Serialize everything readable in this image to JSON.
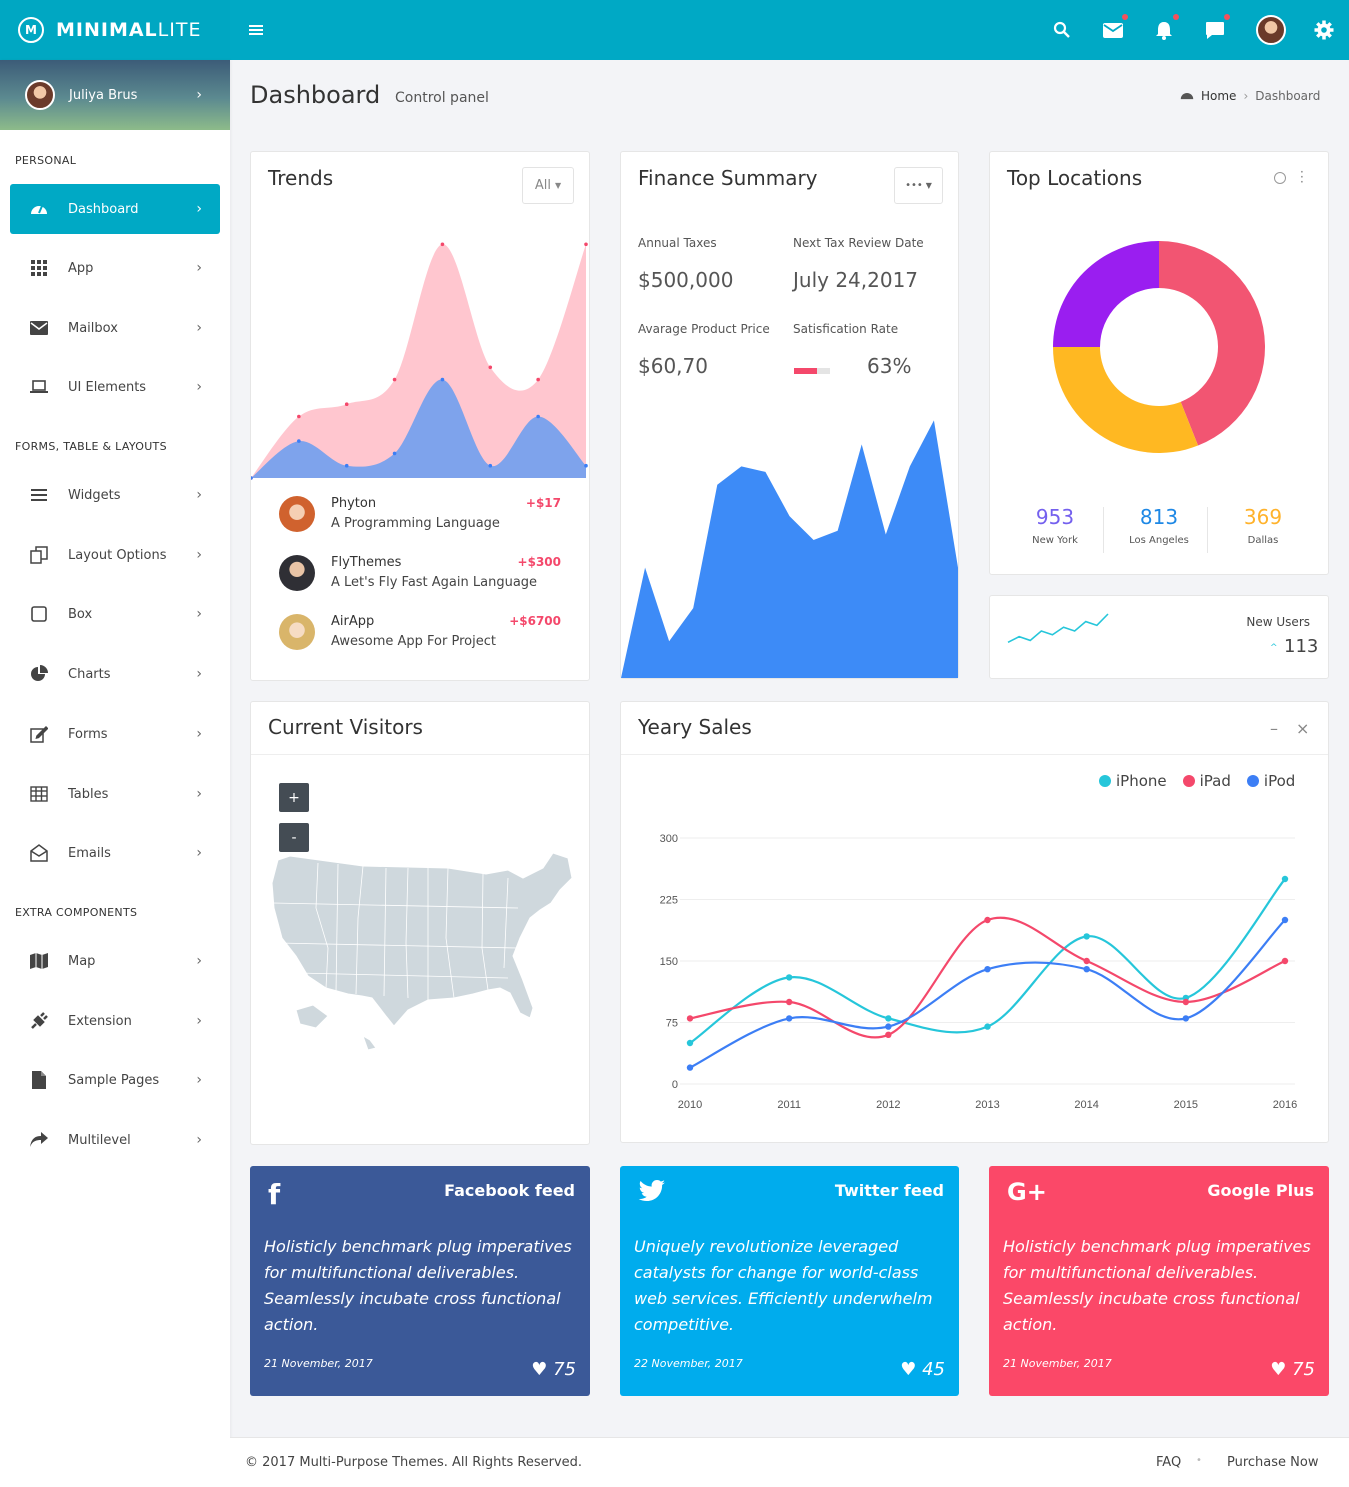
{
  "brand": {
    "bold": "MINIMAL",
    "light": "LITE"
  },
  "user": {
    "name": "Juliya Brus"
  },
  "sidebar": {
    "sections": [
      "PERSONAL",
      "FORMS, TABLE & LAYOUTS",
      "EXTRA COMPONENTS"
    ],
    "items": [
      {
        "label": "Dashboard",
        "icon": "dashboard-icon"
      },
      {
        "label": "App",
        "icon": "grid-icon"
      },
      {
        "label": "Mailbox",
        "icon": "mail-icon"
      },
      {
        "label": "UI Elements",
        "icon": "laptop-icon"
      },
      {
        "label": "Widgets",
        "icon": "bars-icon"
      },
      {
        "label": "Layout Options",
        "icon": "copy-icon"
      },
      {
        "label": "Box",
        "icon": "square-icon"
      },
      {
        "label": "Charts",
        "icon": "pie-icon"
      },
      {
        "label": "Forms",
        "icon": "edit-icon"
      },
      {
        "label": "Tables",
        "icon": "table-icon"
      },
      {
        "label": "Emails",
        "icon": "envelope-open-icon"
      },
      {
        "label": "Map",
        "icon": "map-icon"
      },
      {
        "label": "Extension",
        "icon": "plug-icon"
      },
      {
        "label": "Sample Pages",
        "icon": "file-icon"
      },
      {
        "label": "Multilevel",
        "icon": "share-icon"
      }
    ]
  },
  "page": {
    "title": "Dashboard",
    "subtitle": "Control panel",
    "breadcrumb": [
      "Home",
      "Dashboard"
    ]
  },
  "trends": {
    "title": "Trends",
    "filter": "All",
    "items": [
      {
        "name": "Phyton",
        "desc": "A Programming Language",
        "amount": "+$17"
      },
      {
        "name": "FlyThemes",
        "desc": "A Let's Fly Fast Again Language",
        "amount": "+$300"
      },
      {
        "name": "AirApp",
        "desc": "Awesome App For Project",
        "amount": "+$6700"
      }
    ]
  },
  "finance": {
    "title": "Finance Summary",
    "menu": "•••",
    "labels": [
      "Annual Taxes",
      "Next Tax Review Date",
      "Avarage Product Price",
      "Satisfication Rate"
    ],
    "values": [
      "$500,000",
      "July 24,2017",
      "$60,70",
      "63%"
    ],
    "satisfaction": 0.63
  },
  "locations": {
    "title": "Top Locations",
    "items": [
      {
        "value": "953",
        "city": "New York",
        "color": "#7460ee"
      },
      {
        "value": "813",
        "city": "Los Angeles",
        "color": "#1e88e5"
      },
      {
        "value": "369",
        "city": "Dallas",
        "color": "#ffb22b"
      }
    ],
    "donut": [
      {
        "value": 44,
        "color": "#f25572"
      },
      {
        "value": 31,
        "color": "#ffb822"
      },
      {
        "value": 25,
        "color": "#9a1ef0"
      }
    ]
  },
  "newusers": {
    "label": "New Users",
    "value": "113",
    "arrow": "^"
  },
  "visitors": {
    "title": "Current Visitors",
    "zoom_in": "+",
    "zoom_out": "-"
  },
  "sales": {
    "title": "Yeary Sales",
    "min": "–",
    "close": "×"
  },
  "feeds": [
    {
      "title": "Facebook feed",
      "text": "Holisticly benchmark plug imperatives for multifunctional deliverables. Seamlessly incubate cross functional action.",
      "date": "21 November, 2017",
      "likes": "75",
      "color": "#3b5998",
      "icon": "f"
    },
    {
      "title": "Twitter feed",
      "text": "Uniquely revolutionize leveraged catalysts for change for world-class web services. Efficiently underwhelm competitive.",
      "date": "22 November, 2017",
      "likes": "45",
      "color": "#00aced",
      "icon": "t"
    },
    {
      "title": "Google Plus",
      "text": "Holisticly benchmark plug imperatives for multifunctional deliverables. Seamlessly incubate cross functional action.",
      "date": "21 November, 2017",
      "likes": "75",
      "color": "#fb4868",
      "icon": "G+"
    }
  ],
  "footer": {
    "copyright": "© 2017 Multi-Purpose Themes. All Rights Reserved.",
    "links": [
      "FAQ",
      "Purchase Now"
    ]
  },
  "chart_data": [
    {
      "type": "line",
      "title": "Yeary Sales",
      "categories": [
        "2010",
        "2011",
        "2012",
        "2013",
        "2014",
        "2015",
        "2016"
      ],
      "ylim": [
        0,
        300
      ],
      "yticks": [
        0,
        75,
        150,
        225,
        300
      ],
      "series": [
        {
          "name": "iPhone",
          "color": "#26c6da",
          "values": [
            50,
            130,
            80,
            70,
            180,
            105,
            250
          ]
        },
        {
          "name": "iPad",
          "color": "#f4486b",
          "values": [
            80,
            100,
            60,
            200,
            150,
            100,
            150
          ]
        },
        {
          "name": "iPod",
          "color": "#3c7ef5",
          "values": [
            20,
            80,
            70,
            140,
            140,
            80,
            200
          ]
        }
      ]
    },
    {
      "type": "area",
      "title": "Trends",
      "series": [
        {
          "name": "",
          "color": "#ffc6cf",
          "values": [
            0,
            25,
            30,
            40,
            95,
            45,
            40,
            95
          ]
        },
        {
          "name": "",
          "color": "#7ea3ec",
          "values": [
            0,
            15,
            5,
            10,
            40,
            5,
            25,
            5
          ]
        }
      ]
    },
    {
      "type": "area",
      "title": "",
      "series": [
        {
          "name": "",
          "color": "#3d8bf7",
          "values": [
            0,
            60,
            20,
            38,
            105,
            115,
            112,
            88,
            75,
            80,
            127,
            78,
            115,
            140,
            60
          ]
        }
      ]
    },
    {
      "type": "pie",
      "title": "Top Locations",
      "values": [
        44,
        31,
        25
      ]
    },
    {
      "type": "line",
      "title": "New Users",
      "values": [
        3,
        6,
        4,
        9,
        7,
        11,
        9,
        14,
        12,
        18
      ]
    }
  ]
}
